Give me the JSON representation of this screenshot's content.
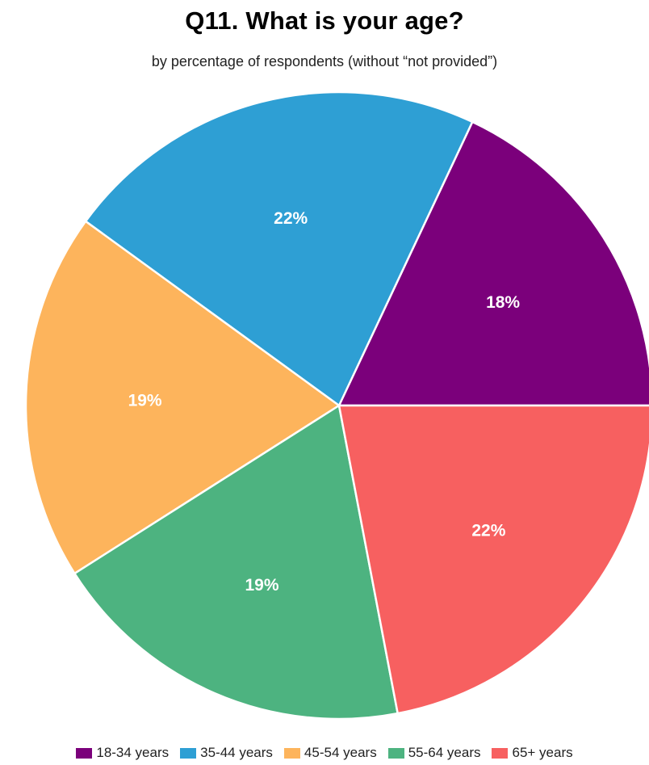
{
  "chart_data": {
    "type": "pie",
    "title": "Q11. What is your age?",
    "subtitle": "by percentage of respondents (without “not provided”)",
    "categories": [
      "18-34 years",
      "35-44 years",
      "45-54 years",
      "55-64 years",
      "65+ years"
    ],
    "values": [
      18,
      22,
      19,
      19,
      22
    ],
    "data_labels": [
      "18%",
      "22%",
      "19%",
      "19%",
      "22%"
    ],
    "colors": [
      "#7B007B",
      "#2E9FD4",
      "#FDB45C",
      "#4DB380",
      "#F76060"
    ],
    "legend_position": "bottom"
  }
}
